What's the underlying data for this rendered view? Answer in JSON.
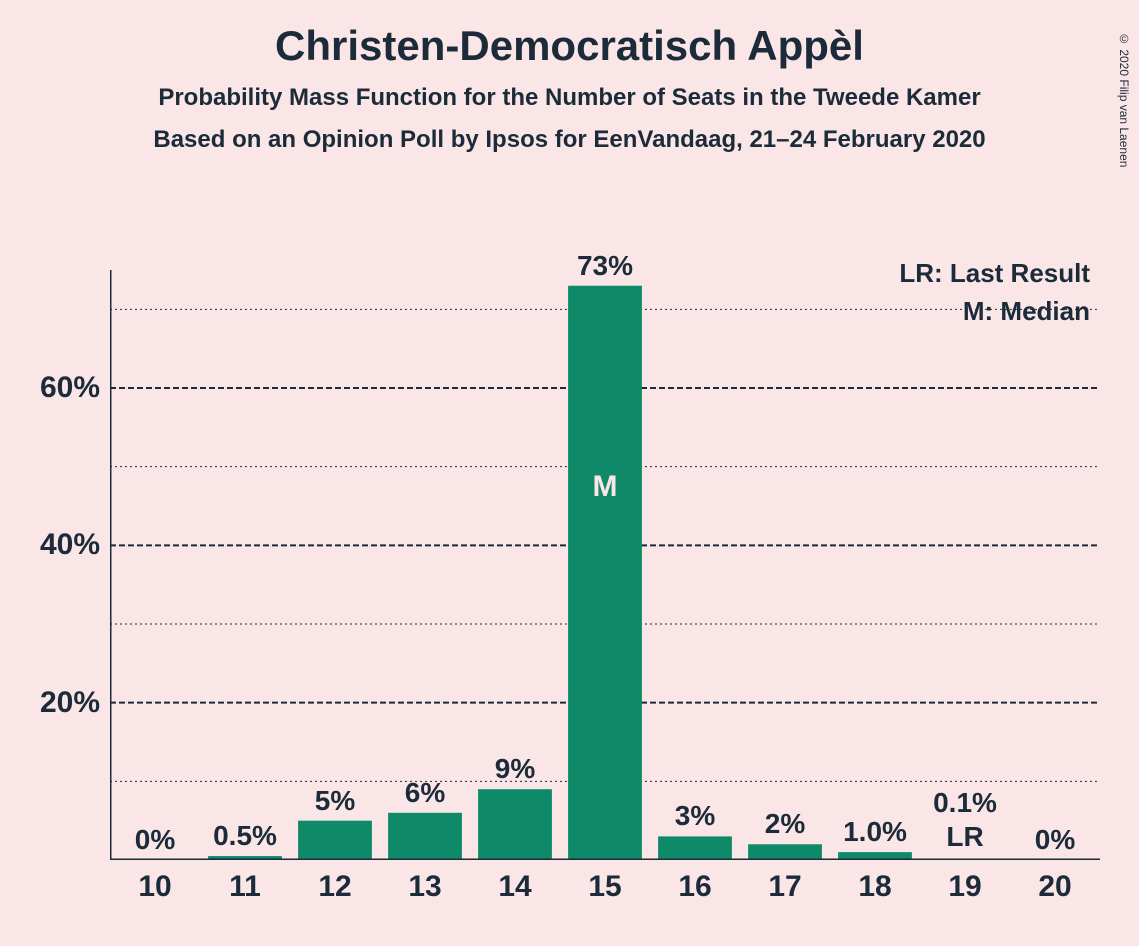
{
  "copyright": "© 2020 Filip van Laenen",
  "title": "Christen-Democratisch Appèl",
  "subtitle1": "Probability Mass Function for the Number of Seats in the Tweede Kamer",
  "subtitle2": "Based on an Opinion Poll by Ipsos for EenVandaag, 21–24 February 2020",
  "legend": {
    "lr": "LR: Last Result",
    "m": "M: Median"
  },
  "chart": {
    "type": "bar",
    "bar_color": "#0f8a68",
    "background_color": "#fae6e6",
    "text_color": "#1c2b3a",
    "y_max": 75,
    "y_major_ticks": [
      20,
      40,
      60
    ],
    "y_minor_ticks": [
      10,
      30,
      50,
      70
    ],
    "y_tick_labels": [
      "20%",
      "40%",
      "60%"
    ],
    "x_categories": [
      "10",
      "11",
      "12",
      "13",
      "14",
      "15",
      "16",
      "17",
      "18",
      "19",
      "20"
    ],
    "values": [
      0,
      0.5,
      5,
      6,
      9,
      73,
      3,
      2,
      1.0,
      0.1,
      0
    ],
    "value_labels": [
      "0%",
      "0.5%",
      "5%",
      "6%",
      "9%",
      "73%",
      "3%",
      "2%",
      "1.0%",
      "0.1%",
      "0%"
    ],
    "median_index": 5,
    "median_mark": "M",
    "lr_index": 9,
    "lr_mark": "LR",
    "bar_width_ratio": 0.82
  }
}
